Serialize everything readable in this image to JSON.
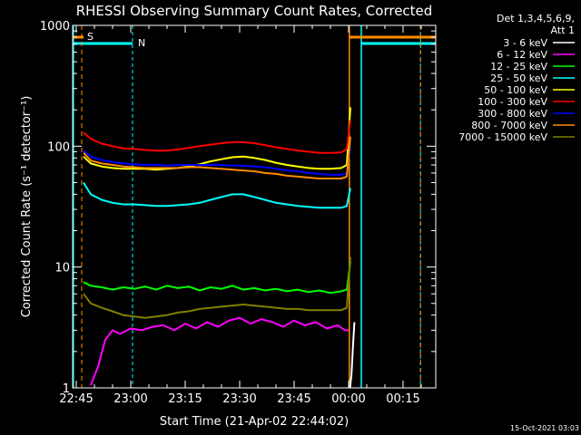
{
  "chart_data": {
    "type": "line",
    "title": "RHESSI Observing Summary Count Rates, Corrected",
    "xlabel": "Start Time (21-Apr-02 22:44:02)",
    "ylabel": "Corrected Count Rate (s⁻¹ detector⁻¹)",
    "x_unit": "minutes after 22:44:02",
    "xlim": [
      0,
      100
    ],
    "ylim": [
      1,
      1000
    ],
    "yscale": "log",
    "x_ticks": [
      {
        "value": 1,
        "label": "22:45"
      },
      {
        "value": 16,
        "label": "23:00"
      },
      {
        "value": 31,
        "label": "23:15"
      },
      {
        "value": 46,
        "label": "23:30"
      },
      {
        "value": 61,
        "label": "23:45"
      },
      {
        "value": 76,
        "label": "00:00"
      },
      {
        "value": 91,
        "label": "00:15"
      }
    ],
    "y_ticks": [
      {
        "value": 1,
        "label": "1"
      },
      {
        "value": 10,
        "label": "10"
      },
      {
        "value": 100,
        "label": "100"
      },
      {
        "value": 1000,
        "label": "1000"
      }
    ],
    "legend": {
      "header": [
        "Det 1,3,4,5,6,9,",
        "Att 1"
      ],
      "placement": "right"
    },
    "series": [
      {
        "name": "3 - 6 keV",
        "color": "#ffffff",
        "x": [
          76.4,
          76.8,
          77.2,
          77.6
        ],
        "y": [
          1,
          1.3,
          2.2,
          3.5
        ]
      },
      {
        "name": "6 - 12 keV",
        "color": "#ff00ff",
        "x": [
          5,
          7,
          9,
          11,
          13,
          16,
          19,
          22,
          25,
          28,
          31,
          34,
          37,
          40,
          43,
          46,
          49,
          52,
          55,
          58,
          61,
          64,
          67,
          70,
          73,
          75,
          76
        ],
        "y": [
          1.05,
          1.5,
          2.5,
          3.0,
          2.8,
          3.1,
          3.0,
          3.2,
          3.3,
          3.0,
          3.4,
          3.1,
          3.5,
          3.2,
          3.6,
          3.8,
          3.4,
          3.7,
          3.5,
          3.2,
          3.6,
          3.3,
          3.5,
          3.1,
          3.3,
          3.0,
          3.0
        ]
      },
      {
        "name": "12 - 25 keV",
        "color": "#00ff00",
        "x": [
          3,
          5,
          8,
          11,
          14,
          17,
          20,
          23,
          26,
          29,
          32,
          35,
          38,
          41,
          44,
          47,
          50,
          53,
          56,
          59,
          62,
          65,
          68,
          71,
          74,
          75.5,
          76.5
        ],
        "y": [
          7.5,
          7.0,
          6.8,
          6.5,
          6.8,
          6.6,
          6.9,
          6.5,
          7.0,
          6.7,
          6.9,
          6.4,
          6.8,
          6.6,
          7.0,
          6.5,
          6.7,
          6.4,
          6.6,
          6.3,
          6.5,
          6.2,
          6.4,
          6.1,
          6.3,
          6.5,
          11
        ]
      },
      {
        "name": "25 - 50 keV",
        "color": "#00ffff",
        "x": [
          3,
          5,
          8,
          11,
          14,
          17,
          20,
          23,
          26,
          29,
          32,
          35,
          38,
          41,
          44,
          47,
          50,
          53,
          56,
          59,
          62,
          65,
          68,
          71,
          74,
          75.5,
          76.5
        ],
        "y": [
          50,
          40,
          36,
          34,
          33,
          33,
          32.5,
          32,
          32,
          32.5,
          33,
          34,
          36,
          38,
          40,
          40,
          38,
          36,
          34,
          33,
          32,
          31.5,
          31,
          31,
          31,
          32,
          45
        ]
      },
      {
        "name": "50 - 100 keV",
        "color": "#ffff00",
        "x": [
          3,
          5,
          8,
          11,
          14,
          17,
          20,
          23,
          26,
          29,
          32,
          35,
          38,
          41,
          44,
          47,
          50,
          53,
          56,
          59,
          62,
          65,
          68,
          71,
          74,
          75.5,
          76.5
        ],
        "y": [
          82,
          72,
          68,
          66,
          65,
          65,
          65,
          64,
          65,
          66,
          68,
          71,
          75,
          78,
          81,
          82,
          80,
          77,
          73,
          70,
          68,
          66,
          65,
          65,
          66,
          70,
          210
        ]
      },
      {
        "name": "100 - 300 keV",
        "color": "#ff0000",
        "x": [
          3,
          5,
          8,
          11,
          14,
          17,
          20,
          23,
          26,
          29,
          32,
          35,
          38,
          41,
          44,
          47,
          50,
          53,
          56,
          59,
          62,
          65,
          68,
          71,
          74,
          75.5,
          76.5
        ],
        "y": [
          130,
          115,
          105,
          100,
          96,
          95,
          93,
          92,
          92,
          94,
          97,
          100,
          103,
          106,
          108,
          108,
          106,
          102,
          98,
          95,
          92,
          90,
          88,
          88,
          89,
          95,
          165
        ]
      },
      {
        "name": "300 - 800 keV",
        "color": "#0000ff",
        "x": [
          3,
          5,
          8,
          11,
          14,
          17,
          20,
          23,
          26,
          29,
          32,
          35,
          38,
          41,
          44,
          47,
          50,
          53,
          56,
          59,
          62,
          65,
          68,
          71,
          74,
          75.5,
          76.5
        ],
        "y": [
          92,
          82,
          77,
          74,
          72,
          71,
          70,
          70,
          69,
          70,
          70,
          70,
          70,
          70,
          69,
          69,
          68,
          67,
          65,
          63,
          62,
          60,
          59,
          58,
          58,
          60,
          100
        ]
      },
      {
        "name": "800 - 7000 keV",
        "color": "#ff8c00",
        "x": [
          3,
          5,
          8,
          11,
          14,
          17,
          20,
          23,
          26,
          29,
          32,
          35,
          38,
          41,
          44,
          47,
          50,
          53,
          56,
          59,
          62,
          65,
          68,
          71,
          74,
          75.5,
          76.5
        ],
        "y": [
          88,
          76,
          72,
          70,
          68,
          67,
          66,
          66,
          66,
          66,
          67,
          67,
          66,
          65,
          64,
          63,
          62,
          60,
          59,
          57,
          56,
          55,
          54,
          54,
          54,
          56,
          120
        ]
      },
      {
        "name": "7000 - 15000 keV",
        "color": "#808000",
        "x": [
          3,
          5,
          8,
          11,
          14,
          17,
          20,
          23,
          26,
          29,
          32,
          35,
          38,
          41,
          44,
          47,
          50,
          53,
          56,
          59,
          62,
          65,
          68,
          71,
          74,
          75.5,
          76.5
        ],
        "y": [
          6.0,
          5.0,
          4.6,
          4.3,
          4.0,
          3.9,
          3.8,
          3.9,
          4.0,
          4.2,
          4.3,
          4.5,
          4.6,
          4.7,
          4.8,
          4.9,
          4.8,
          4.7,
          4.6,
          4.5,
          4.5,
          4.4,
          4.4,
          4.4,
          4.4,
          4.6,
          12
        ]
      }
    ],
    "annotations": {
      "saa_label": "S",
      "night_label": "N",
      "attenuator_label": "1"
    },
    "markers": {
      "saa_x": [
        2.5,
        76.2
      ],
      "night_x": [
        0.2,
        16.5,
        79.5,
        95.8
      ],
      "attenuator_x": [
        76.2,
        95.8
      ]
    },
    "timestamp": "15-Oct-2021 03:03"
  }
}
